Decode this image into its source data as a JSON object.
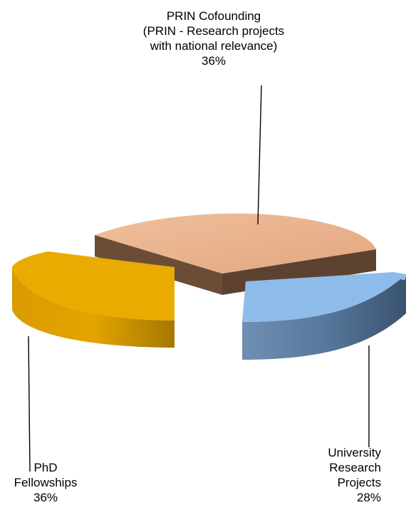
{
  "chart_data": {
    "type": "pie",
    "title": "",
    "slices": [
      {
        "label_lines": [
          "PRIN Cofounding",
          "(PRIN - Research projects",
          "with national relevance)"
        ],
        "percent_label": "36%",
        "value": 36,
        "top_color": "#e8b08a",
        "side_color": "#6b4c37"
      },
      {
        "label_lines": [
          "University",
          "Research",
          "Projects"
        ],
        "percent_label": "28%",
        "value": 28,
        "top_color": "#8ebcea",
        "side_color": "#4f6e8f"
      },
      {
        "label_lines": [
          "PhD",
          "Fellowships"
        ],
        "percent_label": "36%",
        "value": 36,
        "top_color": "#e9ab00",
        "side_color": "#c48f00"
      }
    ],
    "style": "3d-exploded"
  }
}
